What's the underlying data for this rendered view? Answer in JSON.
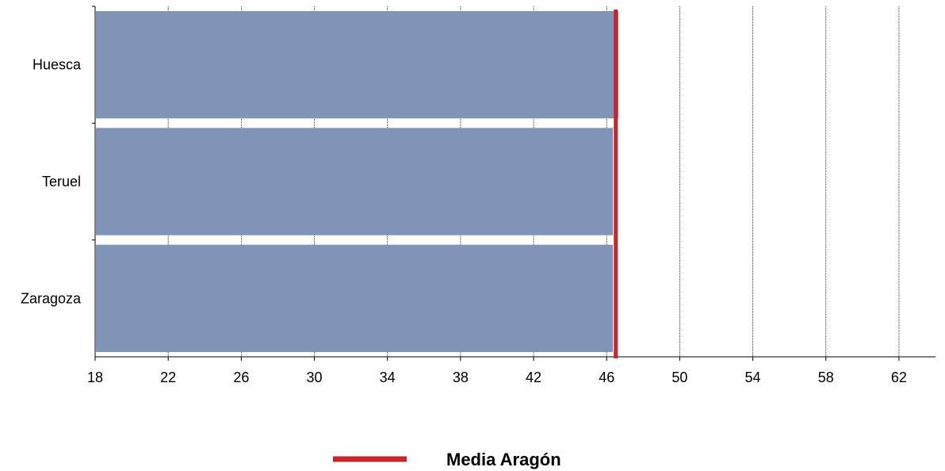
{
  "chart_data": {
    "type": "bar",
    "orientation": "horizontal",
    "categories": [
      "Huesca",
      "Teruel",
      "Zaragoza"
    ],
    "values": [
      46.6,
      46.3,
      46.3
    ],
    "xlim": [
      18,
      64
    ],
    "xticks": [
      "18",
      "22",
      "26",
      "30",
      "34",
      "38",
      "42",
      "46",
      "50",
      "54",
      "58",
      "62"
    ],
    "reference_line": {
      "label": "Media Aragón",
      "value": 46.5,
      "color": "#cc2229"
    },
    "bar_color": "#8094b7",
    "grid": "vertical dotted",
    "legend_position": "bottom-center"
  }
}
